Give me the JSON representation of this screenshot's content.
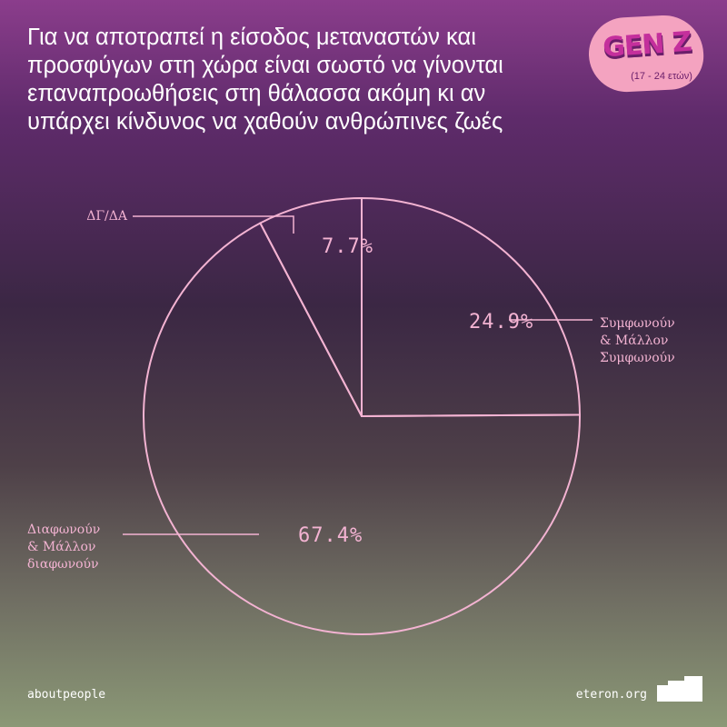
{
  "title": "Για να αποτραπεί η είσοδος μεταναστών και προσφύγων στη χώρα είναι σωστό να γίνονται επαναπροωθήσεις στη θάλασσα ακόμη κι αν υπάρχει κίνδυνος να χαθούν ανθρώπινες ζωές",
  "badge": {
    "title": "GEN Z",
    "subtitle": "(17 - 24 ετών)"
  },
  "footer": {
    "left": "aboutpeople",
    "right": "eteron.org"
  },
  "colors": {
    "accent": "#f3b3d2",
    "badge_bg": "#f4a3c0",
    "badge_text": "#c42f9c"
  },
  "chart_data": {
    "type": "pie",
    "title": "Για να αποτραπεί η είσοδος μεταναστών και προσφύγων στη χώρα είναι σωστό να γίνονται επαναπροωθήσεις στη θάλασσα ακόμη κι αν υπάρχει κίνδυνος να χαθούν ανθρώπινες ζωές",
    "slices": [
      {
        "label": [
          "Συμφωνούν",
          "& Μάλλον",
          "Συμφωνούν"
        ],
        "value": 24.9,
        "display": "24.9%"
      },
      {
        "label": [
          "Διαφωνούν",
          "& Μάλλον",
          "διαφωνούν"
        ],
        "value": 67.4,
        "display": "67.4%"
      },
      {
        "label": [
          "ΔΓ/ΔΑ"
        ],
        "value": 7.7,
        "display": "7.7%"
      }
    ]
  }
}
